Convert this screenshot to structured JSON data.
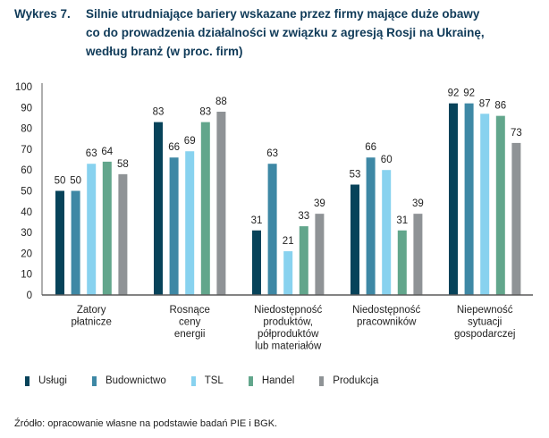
{
  "title": {
    "number": "Wykres 7.",
    "lines": [
      "Silnie utrudniające bariery wskazane przez firmy mające duże obawy",
      "co do prowadzenia działalności w związku z agresją Rosji na Ukrainę,",
      "według branż (w proc. firm)"
    ]
  },
  "chart_data": {
    "type": "bar",
    "title": "Silnie utrudniające bariery wskazane przez firmy mające duże obawy co do prowadzenia działalności w związku z agresją Rosji na Ukrainę, według branż (w proc. firm)",
    "xlabel": "",
    "ylabel": "",
    "ylim": [
      0,
      100
    ],
    "yticks": [
      0,
      10,
      20,
      30,
      40,
      50,
      60,
      70,
      80,
      90,
      100
    ],
    "grid": false,
    "legend_position": "bottom",
    "categories": [
      [
        "Zatory",
        "płatnicze"
      ],
      [
        "Rosnące",
        "ceny",
        "energii"
      ],
      [
        "Niedostępność",
        "produktów,",
        "półproduktów",
        "lub materiałów"
      ],
      [
        "Niedostępność",
        "pracowników"
      ],
      [
        "Niepewność",
        "sytuacji",
        "gospodarczej"
      ]
    ],
    "series": [
      {
        "name": "Usługi",
        "color": "#07435a",
        "values": [
          50,
          83,
          31,
          53,
          92
        ]
      },
      {
        "name": "Budownictwo",
        "color": "#3e88a5",
        "values": [
          50,
          66,
          63,
          66,
          92
        ]
      },
      {
        "name": "TSL",
        "color": "#88d2ef",
        "values": [
          63,
          69,
          21,
          60,
          87
        ]
      },
      {
        "name": "Handel",
        "color": "#62a68c",
        "values": [
          64,
          83,
          33,
          31,
          86
        ]
      },
      {
        "name": "Produkcja",
        "color": "#8f9396",
        "values": [
          58,
          88,
          39,
          39,
          73
        ]
      }
    ]
  },
  "source": "Źródło: opracowanie własne na podstawie badań PIE i BGK."
}
